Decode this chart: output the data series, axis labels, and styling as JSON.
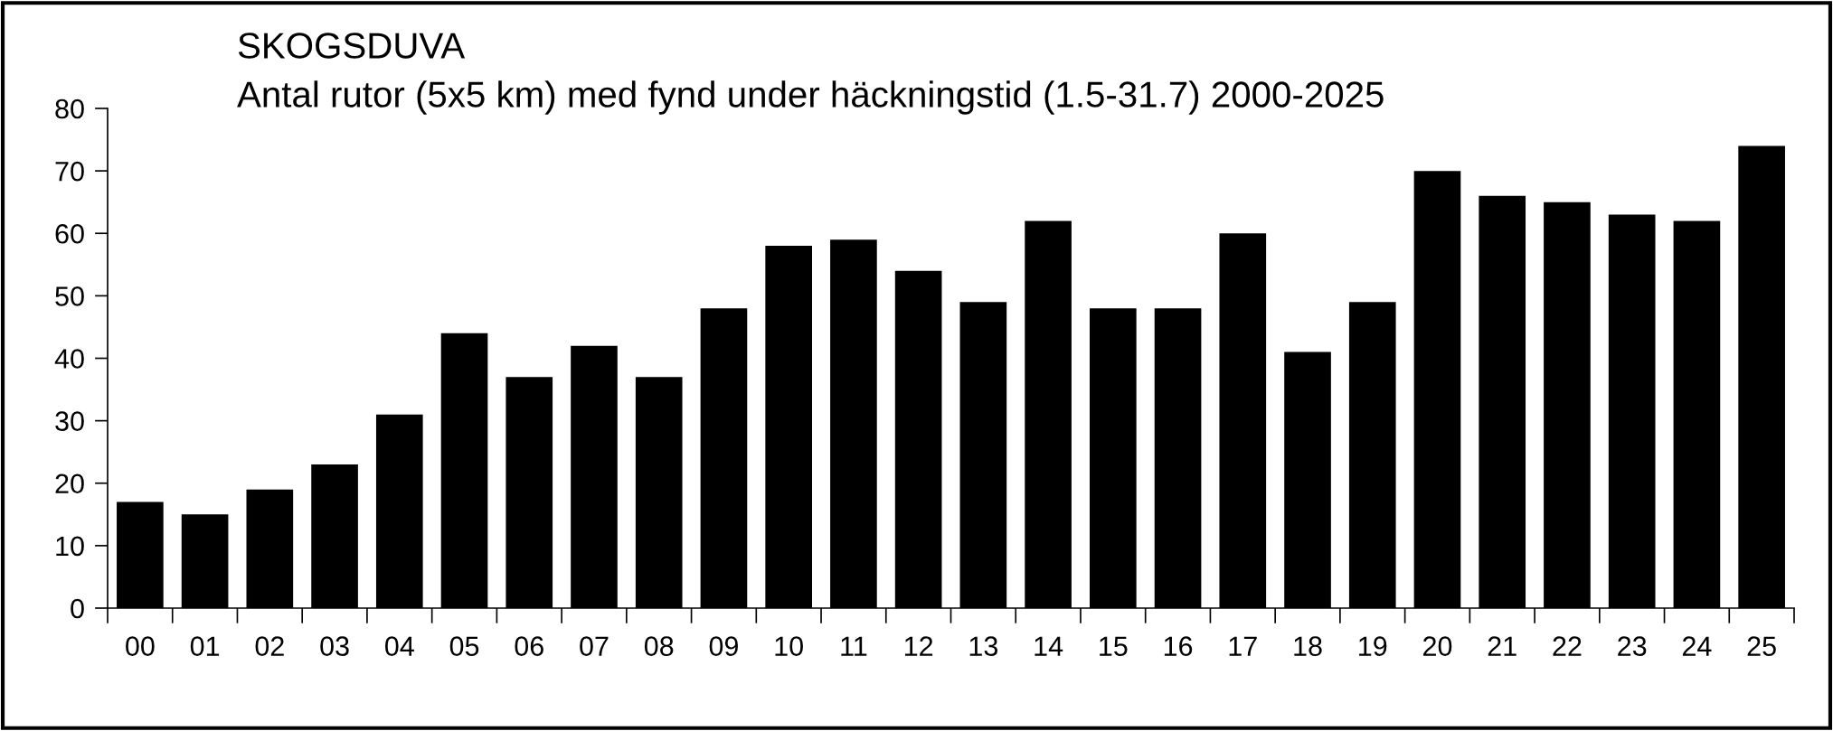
{
  "chart_data": {
    "type": "bar",
    "title": "SKOGSDUVA",
    "subtitle": "Antal rutor (5x5 km) med fynd under häckningstid (1.5-31.7) 2000-2025",
    "categories": [
      "00",
      "01",
      "02",
      "03",
      "04",
      "05",
      "06",
      "07",
      "08",
      "09",
      "10",
      "11",
      "12",
      "13",
      "14",
      "15",
      "16",
      "17",
      "18",
      "19",
      "20",
      "21",
      "22",
      "23",
      "24",
      "25"
    ],
    "values": [
      17,
      15,
      19,
      23,
      31,
      44,
      37,
      42,
      37,
      48,
      58,
      59,
      54,
      49,
      62,
      48,
      48,
      60,
      41,
      49,
      70,
      66,
      65,
      63,
      62,
      74
    ],
    "color": "#000000",
    "ylim": [
      0,
      80
    ],
    "yticks": [
      0,
      10,
      20,
      30,
      40,
      50,
      60,
      70,
      80
    ],
    "grid": false
  }
}
